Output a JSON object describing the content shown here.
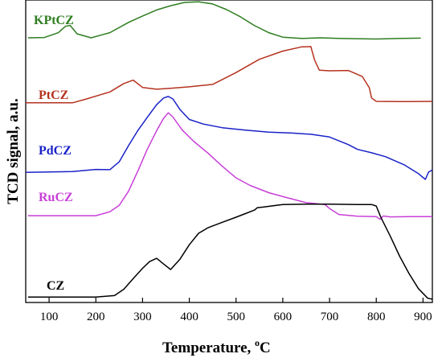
{
  "chart_data": {
    "type": "line",
    "xlabel": "Temperature, ",
    "xlabel_degree": "o",
    "xlabel_unit": "C",
    "ylabel": "TCD signal, a.u.",
    "xlim": [
      50,
      920
    ],
    "ylim": [
      0,
      100
    ],
    "x_ticks": [
      "100",
      "200",
      "300",
      "400",
      "500",
      "600",
      "700",
      "800",
      "900"
    ],
    "grid": false,
    "series": [
      {
        "name": "KPtCZ",
        "color": "#2e7d1f",
        "x": [
          55,
          90,
          120,
          135,
          145,
          160,
          190,
          230,
          270,
          300,
          330,
          360,
          390,
          420,
          450,
          480,
          510,
          540,
          570,
          600,
          640,
          680,
          720,
          760,
          800,
          850,
          895
        ],
        "y": [
          87.5,
          87.6,
          89.2,
          91.3,
          91.6,
          88.8,
          87.5,
          89.2,
          92.6,
          94.7,
          96.7,
          98.1,
          99.2,
          99.4,
          98.7,
          96.8,
          94.4,
          91.5,
          89.2,
          87.7,
          87.3,
          87.5,
          87.3,
          87.2,
          87.1,
          87.3,
          87.4
        ]
      },
      {
        "name": "PtCZ",
        "color": "#b5321f",
        "x": [
          50,
          150,
          180,
          230,
          260,
          280,
          300,
          330,
          360,
          400,
          450,
          500,
          550,
          600,
          640,
          660,
          668,
          678,
          700,
          740,
          770,
          785,
          790,
          800,
          850,
          920
        ],
        "y": [
          66.0,
          66.0,
          67.3,
          69.6,
          72.4,
          73.5,
          71.1,
          70.5,
          70.8,
          71.3,
          72.1,
          76.0,
          80.4,
          83.1,
          84.5,
          84.6,
          80.2,
          76.8,
          76.6,
          76.7,
          74.7,
          71.0,
          67.6,
          66.5,
          66.4,
          66.5
        ]
      },
      {
        "name": "PdCZ",
        "color": "#1a22c8",
        "x": [
          50,
          150,
          200,
          230,
          250,
          270,
          290,
          310,
          330,
          345,
          355,
          365,
          380,
          400,
          430,
          470,
          520,
          570,
          620,
          660,
          700,
          740,
          760,
          790,
          820,
          860,
          890,
          905,
          912,
          920
        ],
        "y": [
          43.0,
          43.3,
          44.0,
          43.9,
          46.5,
          51.9,
          56.9,
          61.2,
          65.4,
          67.6,
          68.1,
          67.3,
          63.8,
          60.5,
          59.0,
          57.8,
          57.0,
          56.3,
          56.0,
          55.6,
          54.7,
          52.2,
          50.6,
          49.5,
          48.2,
          45.5,
          42.6,
          40.7,
          43.1,
          43.8
        ]
      },
      {
        "name": "RuCZ",
        "color": "#c83fd8",
        "x": [
          55,
          200,
          230,
          250,
          270,
          290,
          310,
          330,
          345,
          355,
          365,
          385,
          410,
          440,
          470,
          500,
          530,
          570,
          610,
          650,
          690,
          700,
          720,
          760,
          800,
          808,
          815,
          830,
          870,
          920
        ],
        "y": [
          28.7,
          28.7,
          30.0,
          32.1,
          36.8,
          43.5,
          50.6,
          56.8,
          60.9,
          62.7,
          61.3,
          57.0,
          53.2,
          49.4,
          45.1,
          41.2,
          38.7,
          36.3,
          34.6,
          33.0,
          32.4,
          31.1,
          29.1,
          28.5,
          28.4,
          27.5,
          28.6,
          28.3,
          28.4,
          28.4
        ]
      },
      {
        "name": "CZ",
        "color": "#000000",
        "x": [
          55,
          200,
          240,
          260,
          280,
          300,
          315,
          330,
          345,
          360,
          380,
          400,
          420,
          440,
          470,
          500,
          520,
          540,
          545,
          560,
          600,
          650,
          700,
          760,
          790,
          800,
          810,
          830,
          850,
          870,
          890,
          910,
          920
        ],
        "y": [
          1.8,
          1.8,
          2.3,
          4.4,
          7.9,
          11.3,
          13.5,
          14.6,
          12.7,
          10.9,
          14.3,
          19.1,
          22.9,
          24.7,
          26.5,
          28.2,
          29.4,
          30.6,
          31.3,
          31.6,
          32.4,
          32.5,
          32.5,
          32.4,
          32.4,
          31.9,
          28.1,
          21.9,
          15.3,
          9.6,
          4.6,
          1.4,
          1.1
        ]
      }
    ]
  }
}
